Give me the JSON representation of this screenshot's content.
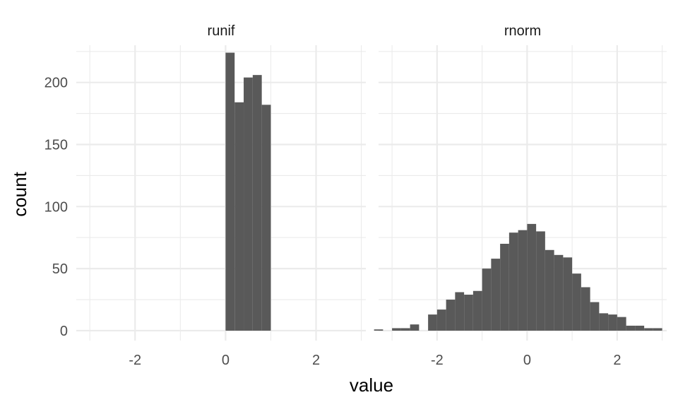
{
  "chart_data": {
    "type": "bar",
    "xlabel": "value",
    "ylabel": "count",
    "xlim": [
      -3.3,
      3.1
    ],
    "ylim": [
      -8,
      230
    ],
    "x_ticks": [
      -2,
      0,
      2
    ],
    "y_ticks": [
      0,
      50,
      100,
      150,
      200
    ],
    "grid": true,
    "bin_width": 0.2,
    "bar_color": "#595959",
    "facets": [
      {
        "name": "runif",
        "bins": [
          {
            "x0": 0.0,
            "x1": 0.2,
            "count": 224
          },
          {
            "x0": 0.2,
            "x1": 0.4,
            "count": 184
          },
          {
            "x0": 0.4,
            "x1": 0.6,
            "count": 204
          },
          {
            "x0": 0.6,
            "x1": 0.8,
            "count": 206
          },
          {
            "x0": 0.8,
            "x1": 1.0,
            "count": 182
          }
        ]
      },
      {
        "name": "rnorm",
        "bins": [
          {
            "x0": -3.4,
            "x1": -3.2,
            "count": 1
          },
          {
            "x0": -3.0,
            "x1": -2.8,
            "count": 2
          },
          {
            "x0": -2.8,
            "x1": -2.6,
            "count": 2
          },
          {
            "x0": -2.6,
            "x1": -2.4,
            "count": 5
          },
          {
            "x0": -2.2,
            "x1": -2.0,
            "count": 13
          },
          {
            "x0": -2.0,
            "x1": -1.8,
            "count": 17
          },
          {
            "x0": -1.8,
            "x1": -1.6,
            "count": 25
          },
          {
            "x0": -1.6,
            "x1": -1.4,
            "count": 31
          },
          {
            "x0": -1.4,
            "x1": -1.2,
            "count": 29
          },
          {
            "x0": -1.2,
            "x1": -1.0,
            "count": 32
          },
          {
            "x0": -1.0,
            "x1": -0.8,
            "count": 50
          },
          {
            "x0": -0.8,
            "x1": -0.6,
            "count": 58
          },
          {
            "x0": -0.6,
            "x1": -0.4,
            "count": 70
          },
          {
            "x0": -0.4,
            "x1": -0.2,
            "count": 79
          },
          {
            "x0": -0.2,
            "x1": 0.0,
            "count": 81
          },
          {
            "x0": 0.0,
            "x1": 0.2,
            "count": 86
          },
          {
            "x0": 0.2,
            "x1": 0.4,
            "count": 80
          },
          {
            "x0": 0.4,
            "x1": 0.6,
            "count": 65
          },
          {
            "x0": 0.6,
            "x1": 0.8,
            "count": 61
          },
          {
            "x0": 0.8,
            "x1": 1.0,
            "count": 59
          },
          {
            "x0": 1.0,
            "x1": 1.2,
            "count": 46
          },
          {
            "x0": 1.2,
            "x1": 1.4,
            "count": 35
          },
          {
            "x0": 1.4,
            "x1": 1.6,
            "count": 23
          },
          {
            "x0": 1.6,
            "x1": 1.8,
            "count": 14
          },
          {
            "x0": 1.8,
            "x1": 2.0,
            "count": 13
          },
          {
            "x0": 2.0,
            "x1": 2.2,
            "count": 11
          },
          {
            "x0": 2.2,
            "x1": 2.4,
            "count": 4
          },
          {
            "x0": 2.4,
            "x1": 2.6,
            "count": 4
          },
          {
            "x0": 2.6,
            "x1": 2.8,
            "count": 2
          },
          {
            "x0": 2.8,
            "x1": 3.0,
            "count": 2
          }
        ]
      }
    ]
  }
}
